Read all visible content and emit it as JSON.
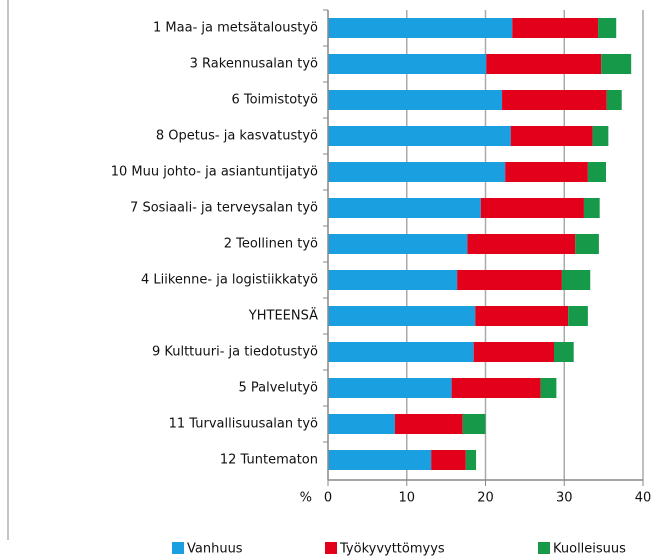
{
  "chart_data": {
    "type": "stacked_barh",
    "x_label": "%",
    "categories": [
      "1 Maa- ja metsätaloustyö",
      "3 Rakennusalan työ",
      "6 Toimistotyö",
      "8 Opetus- ja kasvatustyö",
      "10 Muu johto- ja asiantuntijatyö",
      "7 Sosiaali- ja terveysalan työ",
      "2 Teollinen työ",
      "4 Liikenne- ja logistiikkatyö",
      "YHTEENSÄ",
      "9 Kulttuuri- ja tiedotustyö",
      "5 Palvelutyö",
      "11 Turvallisuusalan työ",
      "12 Tuntematon"
    ],
    "series": [
      {
        "name": "Vanhuus",
        "color": "#1a9fe0",
        "values": [
          23.4,
          20.1,
          22.1,
          23.2,
          22.5,
          19.4,
          17.7,
          16.4,
          18.7,
          18.5,
          15.7,
          8.5,
          13.1
        ]
      },
      {
        "name": "Työkyvyttömyys",
        "color": "#e3001b",
        "values": [
          10.9,
          14.6,
          13.3,
          10.4,
          10.5,
          13.1,
          13.7,
          13.3,
          11.8,
          10.2,
          11.3,
          8.6,
          4.4
        ]
      },
      {
        "name": "Kuolleisuus",
        "color": "#17994a",
        "values": [
          2.3,
          3.8,
          1.9,
          2.0,
          2.3,
          2.0,
          3.0,
          3.6,
          2.5,
          2.5,
          2.0,
          2.9,
          1.3
        ]
      }
    ],
    "xlim": [
      0,
      40
    ],
    "xticks": [
      0,
      10,
      20,
      30,
      40
    ],
    "grid": true
  }
}
